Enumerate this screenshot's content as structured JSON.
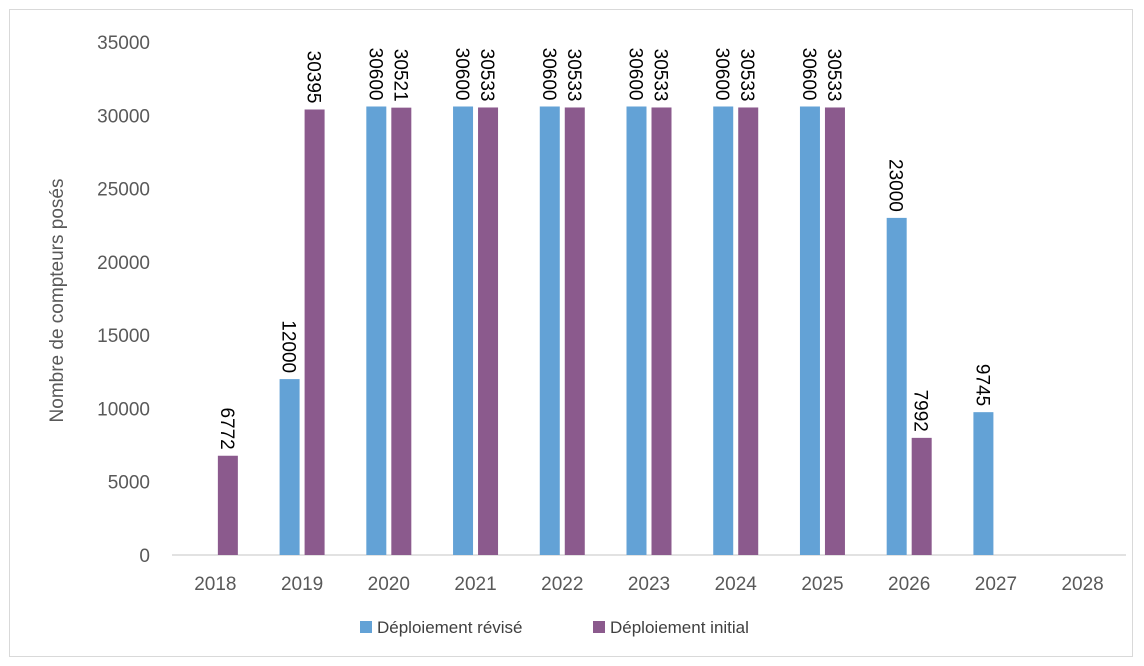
{
  "chart_data": {
    "type": "bar",
    "title": "",
    "xlabel": "",
    "ylabel": "Nombre de compteurs posés",
    "ylim": [
      0,
      35000
    ],
    "yticks": [
      0,
      5000,
      10000,
      15000,
      20000,
      25000,
      30000,
      35000
    ],
    "grid": false,
    "legend_position": "bottom",
    "categories": [
      "2018",
      "2019",
      "2020",
      "2021",
      "2022",
      "2023",
      "2024",
      "2025",
      "2026",
      "2027",
      "2028"
    ],
    "series": [
      {
        "name": "Déploiement révisé",
        "color": "#63a2d6",
        "values": [
          null,
          12000,
          30600,
          30600,
          30600,
          30600,
          30600,
          30600,
          23000,
          9745,
          null
        ]
      },
      {
        "name": "Déploiement initial",
        "color": "#8b5a8d",
        "values": [
          6772,
          30395,
          30521,
          30533,
          30533,
          30533,
          30533,
          30533,
          7992,
          null,
          null
        ]
      }
    ]
  }
}
